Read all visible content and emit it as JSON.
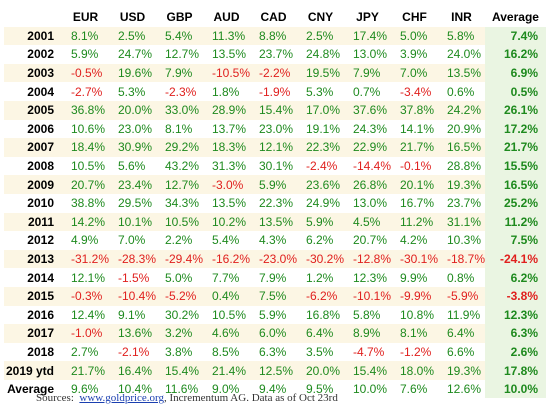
{
  "table": {
    "columns": [
      "EUR",
      "USD",
      "GBP",
      "AUD",
      "CAD",
      "CNY",
      "JPY",
      "CHF",
      "INR",
      "Average"
    ],
    "rows": [
      {
        "label": "2001",
        "cells": [
          "8.1%",
          "2.5%",
          "5.4%",
          "11.3%",
          "8.8%",
          "2.5%",
          "17.4%",
          "5.0%",
          "5.8%",
          "7.4%"
        ]
      },
      {
        "label": "2002",
        "cells": [
          "5.9%",
          "24.7%",
          "12.7%",
          "13.5%",
          "23.7%",
          "24.8%",
          "13.0%",
          "3.9%",
          "24.0%",
          "16.2%"
        ]
      },
      {
        "label": "2003",
        "cells": [
          "-0.5%",
          "19.6%",
          "7.9%",
          "-10.5%",
          "-2.2%",
          "19.5%",
          "7.9%",
          "7.0%",
          "13.5%",
          "6.9%"
        ]
      },
      {
        "label": "2004",
        "cells": [
          "-2.7%",
          "5.3%",
          "-2.3%",
          "1.8%",
          "-1.9%",
          "5.3%",
          "0.7%",
          "-3.4%",
          "0.6%",
          "0.5%"
        ]
      },
      {
        "label": "2005",
        "cells": [
          "36.8%",
          "20.0%",
          "33.0%",
          "28.9%",
          "15.4%",
          "17.0%",
          "37.6%",
          "37.8%",
          "24.2%",
          "26.1%"
        ]
      },
      {
        "label": "2006",
        "cells": [
          "10.6%",
          "23.0%",
          "8.1%",
          "13.7%",
          "23.0%",
          "19.1%",
          "24.3%",
          "14.1%",
          "20.9%",
          "17.2%"
        ]
      },
      {
        "label": "2007",
        "cells": [
          "18.4%",
          "30.9%",
          "29.2%",
          "18.3%",
          "12.1%",
          "22.3%",
          "22.9%",
          "21.7%",
          "16.5%",
          "21.7%"
        ]
      },
      {
        "label": "2008",
        "cells": [
          "10.5%",
          "5.6%",
          "43.2%",
          "31.3%",
          "30.1%",
          "-2.4%",
          "-14.4%",
          "-0.1%",
          "28.8%",
          "15.5%"
        ]
      },
      {
        "label": "2009",
        "cells": [
          "20.7%",
          "23.4%",
          "12.7%",
          "-3.0%",
          "5.9%",
          "23.6%",
          "26.8%",
          "20.1%",
          "19.3%",
          "16.5%"
        ]
      },
      {
        "label": "2010",
        "cells": [
          "38.8%",
          "29.5%",
          "34.3%",
          "13.5%",
          "22.3%",
          "24.9%",
          "13.0%",
          "16.7%",
          "23.7%",
          "25.2%"
        ]
      },
      {
        "label": "2011",
        "cells": [
          "14.2%",
          "10.1%",
          "10.5%",
          "10.2%",
          "13.5%",
          "5.9%",
          "4.5%",
          "11.2%",
          "31.1%",
          "11.2%"
        ]
      },
      {
        "label": "2012",
        "cells": [
          "4.9%",
          "7.0%",
          "2.2%",
          "5.4%",
          "4.3%",
          "6.2%",
          "20.7%",
          "4.2%",
          "10.3%",
          "7.5%"
        ]
      },
      {
        "label": "2013",
        "cells": [
          "-31.2%",
          "-28.3%",
          "-29.4%",
          "-16.2%",
          "-23.0%",
          "-30.2%",
          "-12.8%",
          "-30.1%",
          "-18.7%",
          "-24.1%"
        ]
      },
      {
        "label": "2014",
        "cells": [
          "12.1%",
          "-1.5%",
          "5.0%",
          "7.7%",
          "7.9%",
          "1.2%",
          "12.3%",
          "9.9%",
          "0.8%",
          "6.2%"
        ]
      },
      {
        "label": "2015",
        "cells": [
          "-0.3%",
          "-10.4%",
          "-5.2%",
          "0.4%",
          "7.5%",
          "-6.2%",
          "-10.1%",
          "-9.9%",
          "-5.9%",
          "-3.8%"
        ]
      },
      {
        "label": "2016",
        "cells": [
          "12.4%",
          "9.1%",
          "30.2%",
          "10.5%",
          "5.9%",
          "16.8%",
          "5.8%",
          "10.8%",
          "11.9%",
          "12.3%"
        ]
      },
      {
        "label": "2017",
        "cells": [
          "-1.0%",
          "13.6%",
          "3.2%",
          "4.6%",
          "6.0%",
          "6.4%",
          "8.9%",
          "8.1%",
          "6.4%",
          "6.3%"
        ]
      },
      {
        "label": "2018",
        "cells": [
          "2.7%",
          "-2.1%",
          "3.8%",
          "8.5%",
          "6.3%",
          "3.5%",
          "-4.7%",
          "-1.2%",
          "6.6%",
          "2.6%"
        ]
      },
      {
        "label": "2019 ytd",
        "cells": [
          "21.7%",
          "16.4%",
          "15.4%",
          "21.4%",
          "12.5%",
          "20.0%",
          "15.4%",
          "18.0%",
          "19.3%",
          "17.8%"
        ]
      },
      {
        "label": "Average",
        "cells": [
          "9.6%",
          "10.4%",
          "11.6%",
          "9.0%",
          "9.4%",
          "9.5%",
          "10.0%",
          "7.6%",
          "12.6%",
          "10.0%"
        ]
      }
    ]
  },
  "footer": {
    "prefix": "Sources:",
    "link": "www.goldprice.org",
    "suffix": ", Incrementum AG. Data as of Oct 23rd"
  }
}
